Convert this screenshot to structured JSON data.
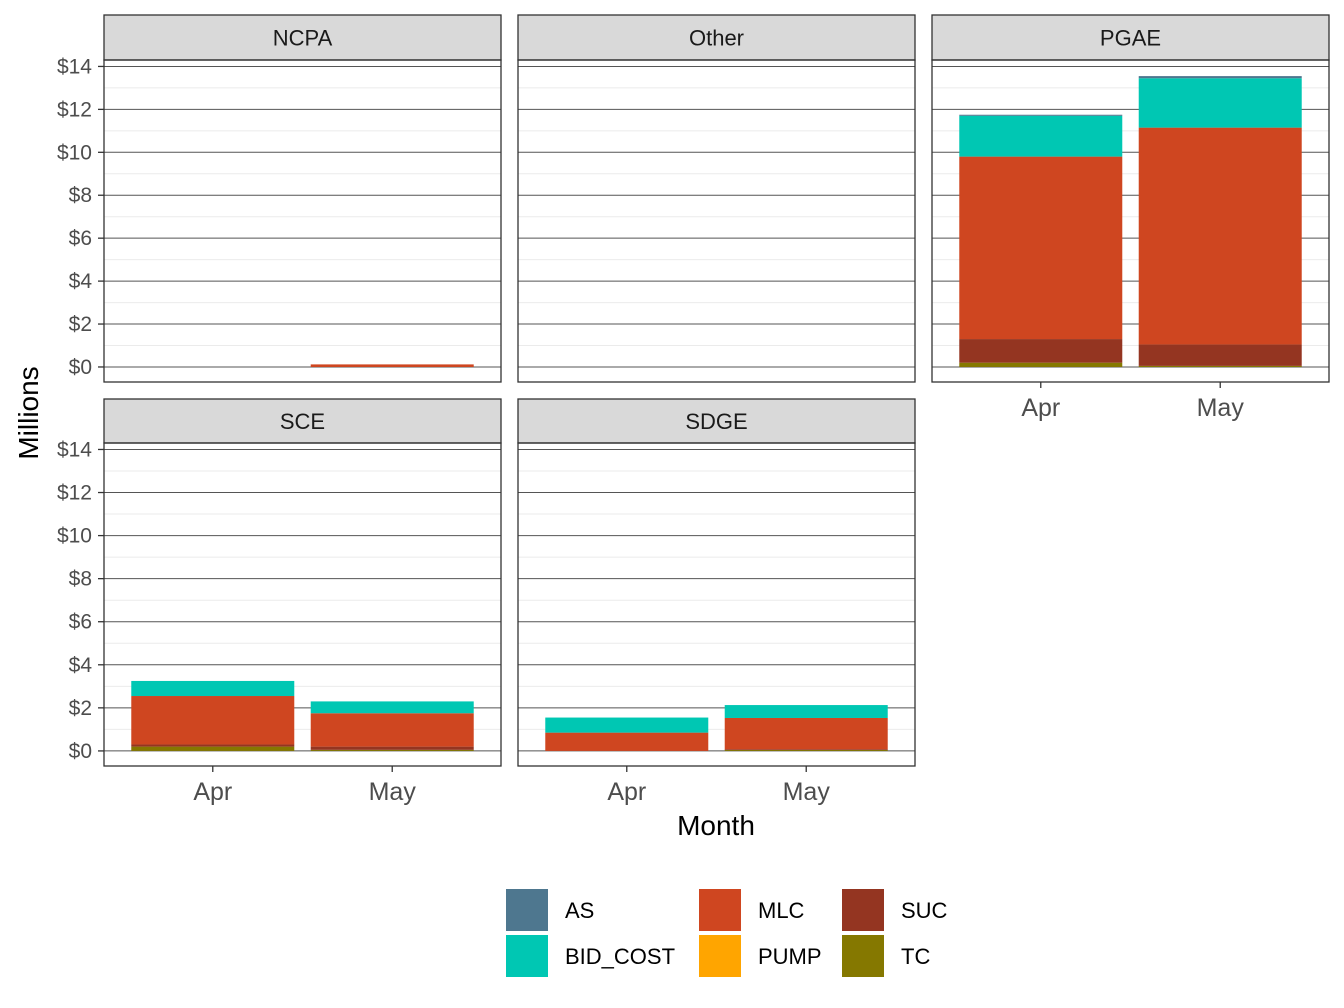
{
  "chart_data": {
    "type": "bar",
    "stacked": true,
    "faceted": true,
    "xlabel": "Month",
    "ylabel": "Millions",
    "ylim": [
      -0.7,
      14.3
    ],
    "yticks": [
      0,
      2,
      4,
      6,
      8,
      10,
      12,
      14
    ],
    "ytick_labels": [
      "$0",
      "$2",
      "$4",
      "$6",
      "$8",
      "$10",
      "$12",
      "$14"
    ],
    "categories": [
      "Apr",
      "May"
    ],
    "grid": true,
    "legend_position": "bottom",
    "series_order": [
      "TC",
      "PUMP",
      "SUC",
      "MLC",
      "BID_COST",
      "AS"
    ],
    "legend_order": [
      "AS",
      "BID_COST",
      "MLC",
      "PUMP",
      "SUC",
      "TC"
    ],
    "colors": {
      "AS": "#4e778f",
      "BID_COST": "#00c7b3",
      "MLC": "#cf4620",
      "PUMP": "#ffa500",
      "SUC": "#943521",
      "TC": "#857800"
    },
    "facets": [
      {
        "name": "NCPA",
        "show_x_axis": false,
        "values": {
          "TC": [
            0,
            0
          ],
          "PUMP": [
            0,
            0
          ],
          "SUC": [
            0,
            0
          ],
          "MLC": [
            0,
            0.12
          ],
          "BID_COST": [
            0,
            0
          ],
          "AS": [
            0,
            0
          ]
        }
      },
      {
        "name": "Other",
        "show_x_axis": false,
        "values": {
          "TC": [
            0,
            0
          ],
          "PUMP": [
            0,
            0
          ],
          "SUC": [
            0,
            0
          ],
          "MLC": [
            0,
            0
          ],
          "BID_COST": [
            0,
            0
          ],
          "AS": [
            0,
            0
          ]
        }
      },
      {
        "name": "PGAE",
        "show_x_axis": true,
        "values": {
          "TC": [
            0.2,
            0.05
          ],
          "PUMP": [
            0,
            0
          ],
          "SUC": [
            1.1,
            1.0
          ],
          "MLC": [
            8.5,
            10.1
          ],
          "BID_COST": [
            1.9,
            2.3
          ],
          "AS": [
            0.05,
            0.1
          ]
        }
      },
      {
        "name": "SCE",
        "show_x_axis": true,
        "values": {
          "TC": [
            0.2,
            0.05
          ],
          "PUMP": [
            0,
            0
          ],
          "SUC": [
            0.1,
            0.15
          ],
          "MLC": [
            2.25,
            1.55
          ],
          "BID_COST": [
            0.7,
            0.55
          ],
          "AS": [
            0,
            0
          ]
        }
      },
      {
        "name": "SDGE",
        "show_x_axis": true,
        "values": {
          "TC": [
            0,
            0.05
          ],
          "PUMP": [
            0,
            0
          ],
          "SUC": [
            0,
            0.03
          ],
          "MLC": [
            0.85,
            1.45
          ],
          "BID_COST": [
            0.7,
            0.6
          ],
          "AS": [
            0,
            0
          ]
        }
      }
    ]
  }
}
